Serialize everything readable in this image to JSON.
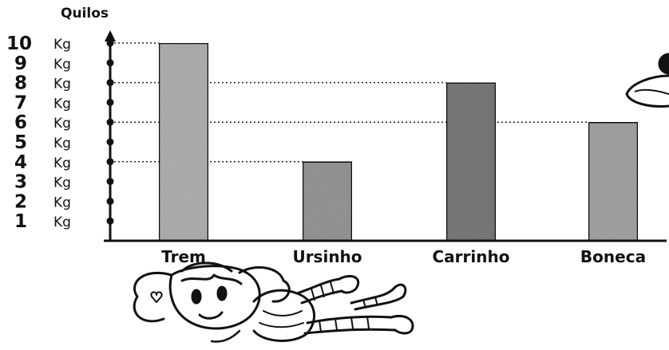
{
  "chart_data": {
    "type": "bar",
    "ylabel": "Quilos",
    "unit": "Kg",
    "yticks": [
      {
        "number": "1",
        "unit": "Kg"
      },
      {
        "number": "2",
        "unit": "Kg"
      },
      {
        "number": "3",
        "unit": "Kg"
      },
      {
        "number": "4",
        "unit": "Kg"
      },
      {
        "number": "5",
        "unit": "Kg"
      },
      {
        "number": "6",
        "unit": "Kg"
      },
      {
        "number": "7",
        "unit": "Kg"
      },
      {
        "number": "8",
        "unit": "Kg"
      },
      {
        "number": "9",
        "unit": "Kg"
      },
      {
        "number": "10",
        "unit": "Kg"
      }
    ],
    "ylim": [
      0,
      10
    ],
    "categories": [
      "Trem",
      "Ursinho",
      "Carrinho",
      "Boneca"
    ],
    "values": [
      10,
      4,
      8,
      6
    ],
    "bar_colors": [
      "#b5b5b5",
      "#9a9a9a",
      "#7d7d7d",
      "#a8a8a8"
    ],
    "gridlines": "dotted at bar tops"
  },
  "illustrations": [
    "doll-illustration",
    "toy-top-illustration"
  ]
}
